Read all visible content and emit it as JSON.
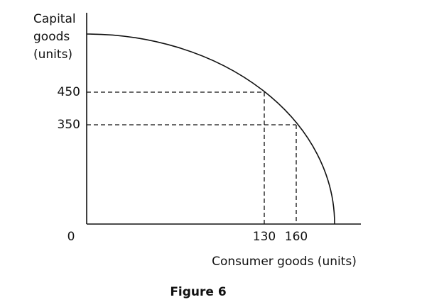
{
  "figure": {
    "caption": "Figure 6",
    "y_axis_label": [
      "Capital",
      "goods",
      "(units)"
    ],
    "x_axis_label": "Consumer goods (units)",
    "origin_label": "0",
    "x_labels": [
      "130",
      "160"
    ],
    "y_labels": [
      "450",
      "350"
    ]
  }
}
